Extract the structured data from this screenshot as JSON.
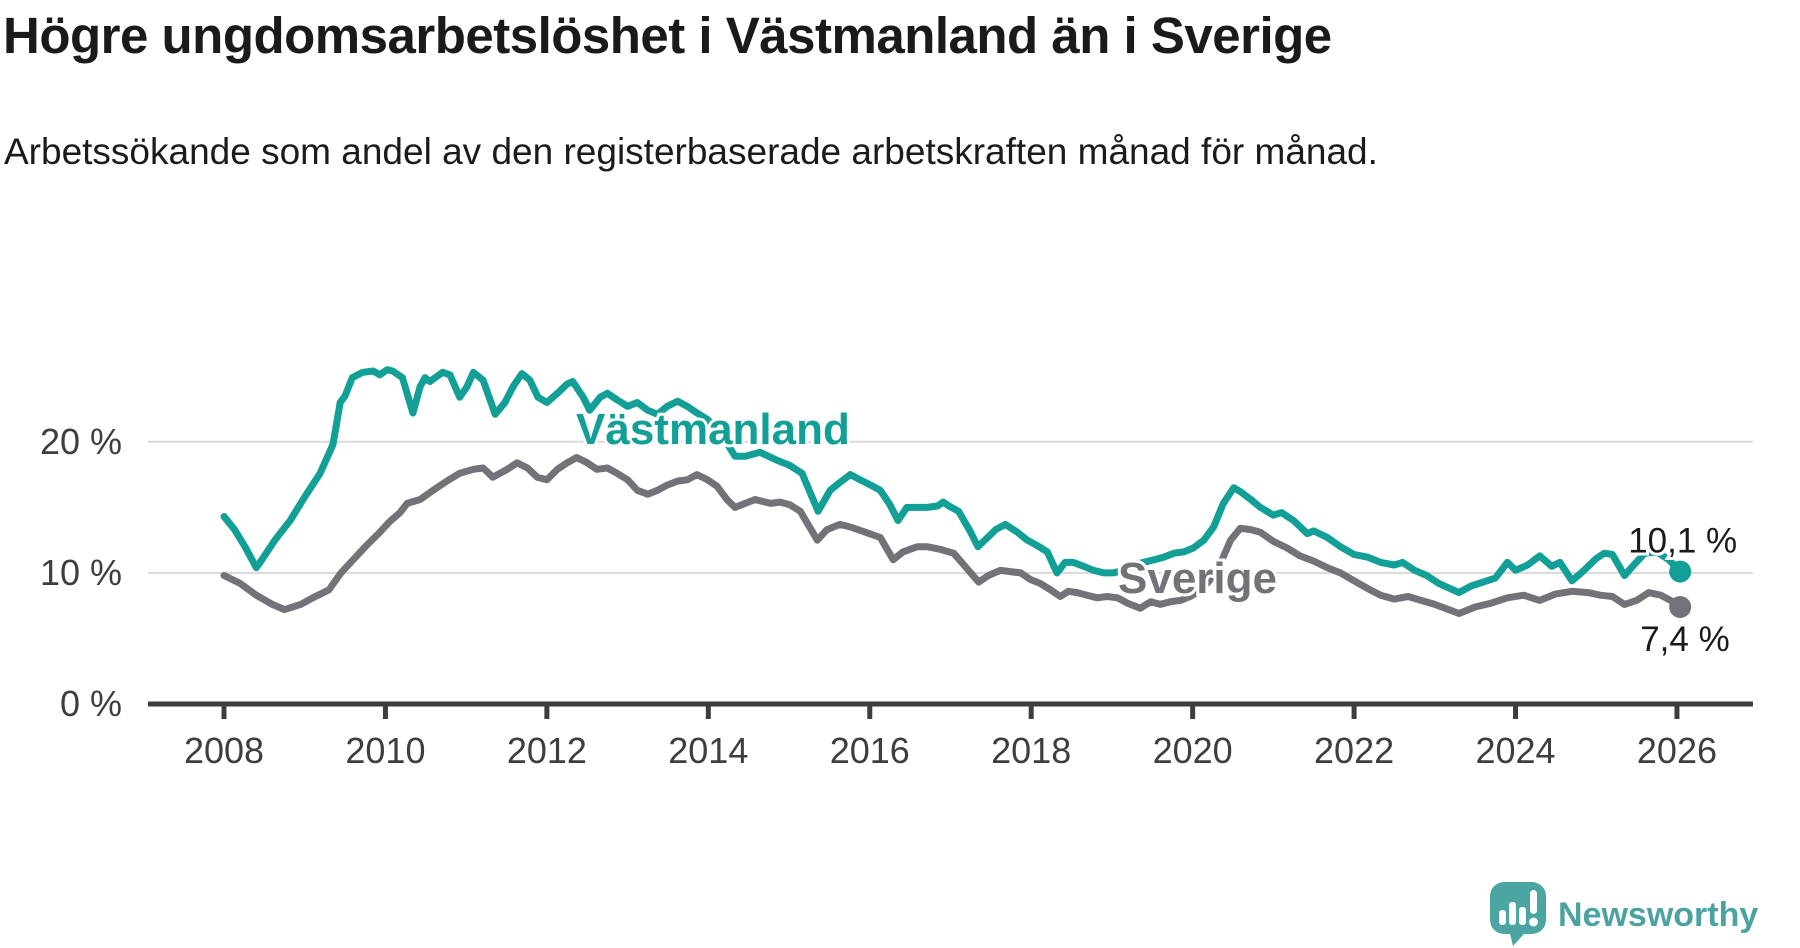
{
  "header": {
    "title": "Högre ungdomsarbetslöshet i Västmanland än i Sverige",
    "subtitle": "Arbetssökande som andel av den registerbaserade arbetskraften månad för månad."
  },
  "branding": {
    "logo_text": "Newsworthy",
    "logo_color": "#4ba5a3",
    "logo_text_color": "#4aa3a1"
  },
  "chart_data": {
    "type": "line",
    "title": "Högre ungdomsarbetslöshet i Västmanland än i Sverige",
    "xlabel": "",
    "ylabel": "",
    "unit": "%",
    "grid": "horizontal",
    "x_axis": {
      "tick_years": [
        2008,
        2010,
        2012,
        2014,
        2016,
        2018,
        2020,
        2022,
        2024,
        2026
      ],
      "tick_labels": [
        "2008",
        "2010",
        "2012",
        "2014",
        "2016",
        "2018",
        "2020",
        "2022",
        "2024",
        "2026"
      ],
      "range": [
        2007.95,
        2026.95
      ]
    },
    "y_axis": {
      "ticks": [
        {
          "label": "0 %",
          "value": 0
        },
        {
          "label": "10 %",
          "value": 10
        },
        {
          "label": "20 %",
          "value": 20
        }
      ],
      "gridline_values": [
        10,
        20
      ],
      "range": [
        0,
        27.8
      ]
    },
    "colors": {
      "vastmanland": "#12a096",
      "sverige": "#757179",
      "gridline": "#d9d9d9",
      "axis": "#3d3d3d",
      "tick_text": "#3e3e3e"
    },
    "series": [
      {
        "name": "Västmanland",
        "color": "#12a096",
        "end_label": "10,1 %",
        "end_value": 10.1,
        "points": [
          [
            2008.0,
            14.3
          ],
          [
            2008.13,
            13.3
          ],
          [
            2008.26,
            12.0
          ],
          [
            2008.4,
            10.4
          ],
          [
            2008.49,
            11.2
          ],
          [
            2008.63,
            12.5
          ],
          [
            2008.82,
            14.0
          ],
          [
            2009.0,
            15.8
          ],
          [
            2009.19,
            17.6
          ],
          [
            2009.35,
            19.8
          ],
          [
            2009.44,
            23.0
          ],
          [
            2009.5,
            23.5
          ],
          [
            2009.59,
            24.9
          ],
          [
            2009.72,
            25.3
          ],
          [
            2009.85,
            25.4
          ],
          [
            2009.93,
            25.1
          ],
          [
            2010.02,
            25.5
          ],
          [
            2010.09,
            25.4
          ],
          [
            2010.21,
            24.9
          ],
          [
            2010.34,
            22.2
          ],
          [
            2010.43,
            24.2
          ],
          [
            2010.49,
            24.9
          ],
          [
            2010.55,
            24.6
          ],
          [
            2010.64,
            25.0
          ],
          [
            2010.71,
            25.3
          ],
          [
            2010.8,
            25.1
          ],
          [
            2010.92,
            23.4
          ],
          [
            2011.01,
            24.2
          ],
          [
            2011.09,
            25.3
          ],
          [
            2011.21,
            24.7
          ],
          [
            2011.36,
            22.1
          ],
          [
            2011.48,
            23.0
          ],
          [
            2011.58,
            24.2
          ],
          [
            2011.69,
            25.2
          ],
          [
            2011.79,
            24.7
          ],
          [
            2011.89,
            23.4
          ],
          [
            2012.0,
            23.0
          ],
          [
            2012.13,
            23.7
          ],
          [
            2012.25,
            24.4
          ],
          [
            2012.32,
            24.6
          ],
          [
            2012.45,
            23.4
          ],
          [
            2012.53,
            22.4
          ],
          [
            2012.66,
            23.4
          ],
          [
            2012.75,
            23.7
          ],
          [
            2012.87,
            23.2
          ],
          [
            2013.0,
            22.7
          ],
          [
            2013.12,
            23.0
          ],
          [
            2013.25,
            22.4
          ],
          [
            2013.37,
            22.1
          ],
          [
            2013.49,
            22.7
          ],
          [
            2013.62,
            23.1
          ],
          [
            2013.74,
            22.7
          ],
          [
            2013.86,
            22.2
          ],
          [
            2013.99,
            21.7
          ],
          [
            2014.11,
            20.9
          ],
          [
            2014.23,
            19.9
          ],
          [
            2014.33,
            18.9
          ],
          [
            2014.46,
            18.9
          ],
          [
            2014.64,
            19.2
          ],
          [
            2014.85,
            18.6
          ],
          [
            2015.01,
            18.2
          ],
          [
            2015.16,
            17.6
          ],
          [
            2015.36,
            14.7
          ],
          [
            2015.51,
            16.3
          ],
          [
            2015.63,
            16.9
          ],
          [
            2015.76,
            17.5
          ],
          [
            2015.88,
            17.1
          ],
          [
            2016.01,
            16.7
          ],
          [
            2016.13,
            16.3
          ],
          [
            2016.25,
            15.2
          ],
          [
            2016.35,
            14.0
          ],
          [
            2016.46,
            15.0
          ],
          [
            2016.59,
            15.0
          ],
          [
            2016.71,
            15.0
          ],
          [
            2016.84,
            15.1
          ],
          [
            2016.91,
            15.4
          ],
          [
            2016.98,
            15.1
          ],
          [
            2017.1,
            14.7
          ],
          [
            2017.25,
            13.1
          ],
          [
            2017.34,
            12.0
          ],
          [
            2017.46,
            12.7
          ],
          [
            2017.56,
            13.3
          ],
          [
            2017.68,
            13.7
          ],
          [
            2017.83,
            13.1
          ],
          [
            2017.95,
            12.5
          ],
          [
            2018.07,
            12.1
          ],
          [
            2018.2,
            11.6
          ],
          [
            2018.32,
            10.0
          ],
          [
            2018.42,
            10.8
          ],
          [
            2018.52,
            10.8
          ],
          [
            2018.65,
            10.5
          ],
          [
            2018.77,
            10.2
          ],
          [
            2018.9,
            10.0
          ],
          [
            2019.02,
            10.0
          ],
          [
            2019.14,
            10.2
          ],
          [
            2019.27,
            10.6
          ],
          [
            2019.39,
            10.8
          ],
          [
            2019.52,
            11.0
          ],
          [
            2019.64,
            11.2
          ],
          [
            2019.77,
            11.5
          ],
          [
            2019.89,
            11.6
          ],
          [
            2020.01,
            11.9
          ],
          [
            2020.14,
            12.5
          ],
          [
            2020.26,
            13.5
          ],
          [
            2020.38,
            15.3
          ],
          [
            2020.51,
            16.5
          ],
          [
            2020.59,
            16.2
          ],
          [
            2020.72,
            15.6
          ],
          [
            2020.84,
            15.0
          ],
          [
            2021.0,
            14.4
          ],
          [
            2021.1,
            14.6
          ],
          [
            2021.25,
            14.0
          ],
          [
            2021.42,
            13.0
          ],
          [
            2021.5,
            13.2
          ],
          [
            2021.67,
            12.7
          ],
          [
            2021.83,
            12.0
          ],
          [
            2022.0,
            11.4
          ],
          [
            2022.17,
            11.2
          ],
          [
            2022.33,
            10.8
          ],
          [
            2022.5,
            10.6
          ],
          [
            2022.6,
            10.8
          ],
          [
            2022.75,
            10.2
          ],
          [
            2022.9,
            9.8
          ],
          [
            2023.05,
            9.2
          ],
          [
            2023.3,
            8.5
          ],
          [
            2023.45,
            9.0
          ],
          [
            2023.6,
            9.3
          ],
          [
            2023.75,
            9.6
          ],
          [
            2023.9,
            10.8
          ],
          [
            2024.0,
            10.2
          ],
          [
            2024.15,
            10.6
          ],
          [
            2024.3,
            11.3
          ],
          [
            2024.45,
            10.5
          ],
          [
            2024.55,
            10.8
          ],
          [
            2024.7,
            9.4
          ],
          [
            2024.85,
            10.2
          ],
          [
            2025.0,
            11.1
          ],
          [
            2025.1,
            11.5
          ],
          [
            2025.2,
            11.4
          ],
          [
            2025.35,
            9.8
          ],
          [
            2025.45,
            10.5
          ],
          [
            2025.6,
            11.5
          ],
          [
            2025.75,
            11.6
          ],
          [
            2025.9,
            11.0
          ],
          [
            2026.04,
            10.1
          ]
        ]
      },
      {
        "name": "Sverige",
        "color": "#757179",
        "end_label": "7,4 %",
        "end_value": 7.4,
        "points": [
          [
            2008.0,
            9.8
          ],
          [
            2008.2,
            9.2
          ],
          [
            2008.4,
            8.3
          ],
          [
            2008.6,
            7.6
          ],
          [
            2008.75,
            7.2
          ],
          [
            2008.95,
            7.6
          ],
          [
            2009.1,
            8.1
          ],
          [
            2009.3,
            8.7
          ],
          [
            2009.45,
            10.0
          ],
          [
            2009.6,
            11.0
          ],
          [
            2009.75,
            12.0
          ],
          [
            2009.93,
            13.1
          ],
          [
            2010.05,
            13.9
          ],
          [
            2010.18,
            14.6
          ],
          [
            2010.27,
            15.3
          ],
          [
            2010.43,
            15.6
          ],
          [
            2010.59,
            16.3
          ],
          [
            2010.76,
            17.0
          ],
          [
            2010.92,
            17.6
          ],
          [
            2011.09,
            17.9
          ],
          [
            2011.21,
            18.0
          ],
          [
            2011.33,
            17.3
          ],
          [
            2011.51,
            17.9
          ],
          [
            2011.63,
            18.4
          ],
          [
            2011.76,
            18.0
          ],
          [
            2011.88,
            17.3
          ],
          [
            2012.0,
            17.1
          ],
          [
            2012.13,
            17.9
          ],
          [
            2012.25,
            18.4
          ],
          [
            2012.37,
            18.8
          ],
          [
            2012.5,
            18.4
          ],
          [
            2012.62,
            17.9
          ],
          [
            2012.75,
            18.0
          ],
          [
            2012.87,
            17.6
          ],
          [
            2013.0,
            17.1
          ],
          [
            2013.12,
            16.3
          ],
          [
            2013.25,
            16.0
          ],
          [
            2013.37,
            16.3
          ],
          [
            2013.49,
            16.7
          ],
          [
            2013.62,
            17.0
          ],
          [
            2013.74,
            17.1
          ],
          [
            2013.86,
            17.5
          ],
          [
            2013.99,
            17.1
          ],
          [
            2014.11,
            16.6
          ],
          [
            2014.23,
            15.6
          ],
          [
            2014.33,
            15.0
          ],
          [
            2014.58,
            15.6
          ],
          [
            2014.77,
            15.3
          ],
          [
            2014.89,
            15.4
          ],
          [
            2015.01,
            15.2
          ],
          [
            2015.14,
            14.7
          ],
          [
            2015.35,
            12.5
          ],
          [
            2015.47,
            13.3
          ],
          [
            2015.63,
            13.7
          ],
          [
            2015.76,
            13.5
          ],
          [
            2015.95,
            13.1
          ],
          [
            2016.13,
            12.7
          ],
          [
            2016.29,
            11.0
          ],
          [
            2016.41,
            11.6
          ],
          [
            2016.59,
            12.0
          ],
          [
            2016.71,
            12.0
          ],
          [
            2016.87,
            11.8
          ],
          [
            2017.04,
            11.5
          ],
          [
            2017.25,
            10.0
          ],
          [
            2017.35,
            9.3
          ],
          [
            2017.47,
            9.8
          ],
          [
            2017.62,
            10.2
          ],
          [
            2017.74,
            10.1
          ],
          [
            2017.87,
            10.0
          ],
          [
            2017.99,
            9.5
          ],
          [
            2018.11,
            9.2
          ],
          [
            2018.24,
            8.7
          ],
          [
            2018.36,
            8.2
          ],
          [
            2018.46,
            8.6
          ],
          [
            2018.57,
            8.5
          ],
          [
            2018.69,
            8.3
          ],
          [
            2018.82,
            8.1
          ],
          [
            2018.94,
            8.2
          ],
          [
            2019.07,
            8.1
          ],
          [
            2019.19,
            7.7
          ],
          [
            2019.35,
            7.3
          ],
          [
            2019.48,
            7.8
          ],
          [
            2019.6,
            7.6
          ],
          [
            2019.73,
            7.8
          ],
          [
            2019.85,
            7.9
          ],
          [
            2019.97,
            8.2
          ],
          [
            2020.1,
            8.7
          ],
          [
            2020.22,
            9.5
          ],
          [
            2020.35,
            10.8
          ],
          [
            2020.47,
            12.5
          ],
          [
            2020.59,
            13.4
          ],
          [
            2020.72,
            13.3
          ],
          [
            2020.84,
            13.1
          ],
          [
            2021.0,
            12.4
          ],
          [
            2021.17,
            11.9
          ],
          [
            2021.33,
            11.3
          ],
          [
            2021.5,
            10.9
          ],
          [
            2021.67,
            10.4
          ],
          [
            2021.83,
            10.0
          ],
          [
            2022.0,
            9.4
          ],
          [
            2022.17,
            8.8
          ],
          [
            2022.33,
            8.3
          ],
          [
            2022.5,
            8.0
          ],
          [
            2022.67,
            8.2
          ],
          [
            2022.83,
            7.9
          ],
          [
            2023.0,
            7.6
          ],
          [
            2023.3,
            6.9
          ],
          [
            2023.5,
            7.4
          ],
          [
            2023.7,
            7.7
          ],
          [
            2023.9,
            8.1
          ],
          [
            2024.1,
            8.3
          ],
          [
            2024.3,
            7.9
          ],
          [
            2024.5,
            8.4
          ],
          [
            2024.7,
            8.6
          ],
          [
            2024.9,
            8.5
          ],
          [
            2025.05,
            8.3
          ],
          [
            2025.2,
            8.2
          ],
          [
            2025.35,
            7.6
          ],
          [
            2025.5,
            7.9
          ],
          [
            2025.65,
            8.5
          ],
          [
            2025.8,
            8.3
          ],
          [
            2025.95,
            7.8
          ],
          [
            2026.04,
            7.4
          ]
        ]
      }
    ],
    "legend_position": "inline-labels"
  }
}
